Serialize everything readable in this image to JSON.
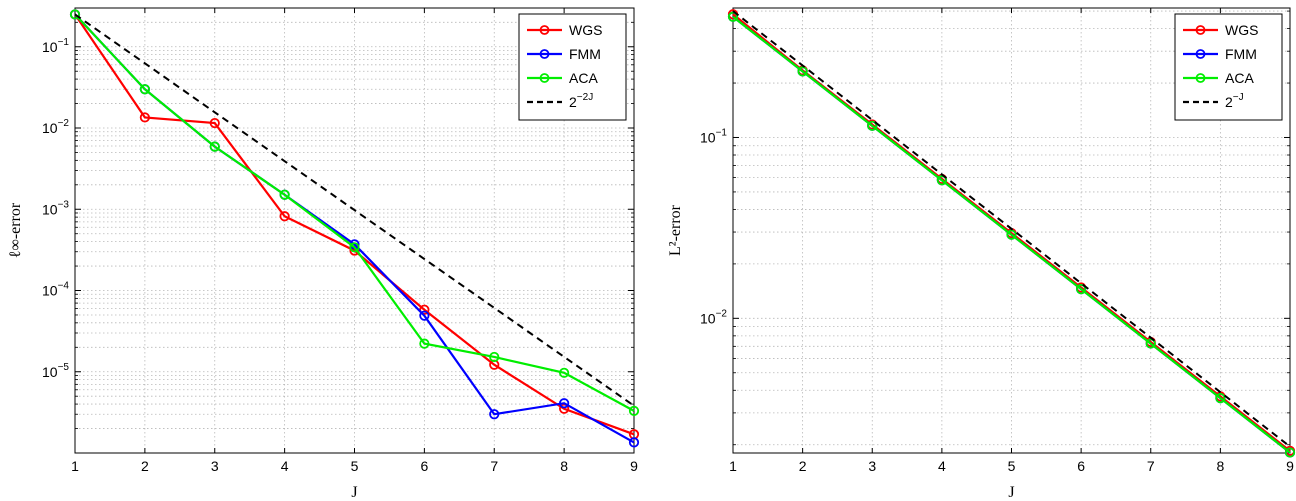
{
  "chart_data": [
    {
      "type": "line",
      "yscale": "log",
      "grid": true,
      "legend_position": "top-right",
      "xlabel": "J",
      "ylabel": "ℓ∞-error",
      "xlim": [
        1,
        9
      ],
      "ylim": [
        1e-06,
        0.3
      ],
      "xticks": [
        "1",
        "2",
        "3",
        "4",
        "5",
        "6",
        "7",
        "8",
        "9"
      ],
      "yticks": [
        {
          "value": 0.1,
          "base": "10",
          "exp": "−1"
        },
        {
          "value": 0.01,
          "base": "10",
          "exp": "−2"
        },
        {
          "value": 0.001,
          "base": "10",
          "exp": "−3"
        },
        {
          "value": 0.0001,
          "base": "10",
          "exp": "−4"
        },
        {
          "value": 1e-05,
          "base": "10",
          "exp": "−5"
        }
      ],
      "x": [
        1,
        2,
        3,
        4,
        5,
        6,
        7,
        8,
        9
      ],
      "series": [
        {
          "name": "WGS",
          "color": "#ff0000",
          "dash": "solid",
          "marker": true,
          "values": [
            0.25,
            0.0135,
            0.0115,
            0.00082,
            0.00031,
            5.8e-05,
            1.22e-05,
            3.5e-06,
            1.7e-06
          ]
        },
        {
          "name": "FMM",
          "color": "#0000ff",
          "dash": "solid",
          "marker": true,
          "values": [
            0.25,
            0.03,
            0.0059,
            0.00151,
            0.00037,
            4.9e-05,
            3e-06,
            4.1e-06,
            1.35e-06
          ]
        },
        {
          "name": "ACA",
          "color": "#00ee00",
          "dash": "solid",
          "marker": true,
          "values": [
            0.25,
            0.03,
            0.0059,
            0.00151,
            0.00034,
            2.22e-05,
            1.52e-05,
            9.7e-06,
            3.3e-06
          ]
        },
        {
          "name": "2",
          "name_sup": "−2J",
          "color": "#000000",
          "dash": "dashed",
          "marker": false,
          "values": [
            0.25,
            0.0625,
            0.015625,
            0.00390625,
            0.0009765625,
            0.000244140625,
            6.103515625e-05,
            1.52587890625e-05,
            3.814697265625e-06
          ]
        }
      ]
    },
    {
      "type": "line",
      "yscale": "log",
      "grid": true,
      "legend_position": "top-right",
      "xlabel": "J",
      "ylabel": "L²-error",
      "xlim": [
        1,
        9
      ],
      "ylim": [
        0.0018,
        0.52
      ],
      "xticks": [
        "1",
        "2",
        "3",
        "4",
        "5",
        "6",
        "7",
        "8",
        "9"
      ],
      "yticks": [
        {
          "value": 0.1,
          "base": "10",
          "exp": "−1"
        },
        {
          "value": 0.01,
          "base": "10",
          "exp": "−2"
        }
      ],
      "x": [
        1,
        2,
        3,
        4,
        5,
        6,
        7,
        8,
        9
      ],
      "series": [
        {
          "name": "WGS",
          "color": "#ff0000",
          "dash": "solid",
          "marker": true,
          "values": [
            0.48,
            0.235,
            0.118,
            0.059,
            0.0296,
            0.0148,
            0.0074,
            0.0037,
            0.00185
          ]
        },
        {
          "name": "FMM",
          "color": "#0000ff",
          "dash": "solid",
          "marker": true,
          "values": [
            0.465,
            0.232,
            0.116,
            0.058,
            0.029,
            0.0145,
            0.00725,
            0.00362,
            0.00181
          ]
        },
        {
          "name": "ACA",
          "color": "#00ee00",
          "dash": "solid",
          "marker": true,
          "values": [
            0.465,
            0.232,
            0.116,
            0.058,
            0.029,
            0.0145,
            0.00725,
            0.00362,
            0.00181
          ]
        },
        {
          "name": "2",
          "name_sup": "−J",
          "color": "#000000",
          "dash": "dashed",
          "marker": false,
          "values": [
            0.5,
            0.25,
            0.125,
            0.0625,
            0.03125,
            0.015625,
            0.0078125,
            0.00390625,
            0.001953125
          ]
        }
      ]
    }
  ]
}
